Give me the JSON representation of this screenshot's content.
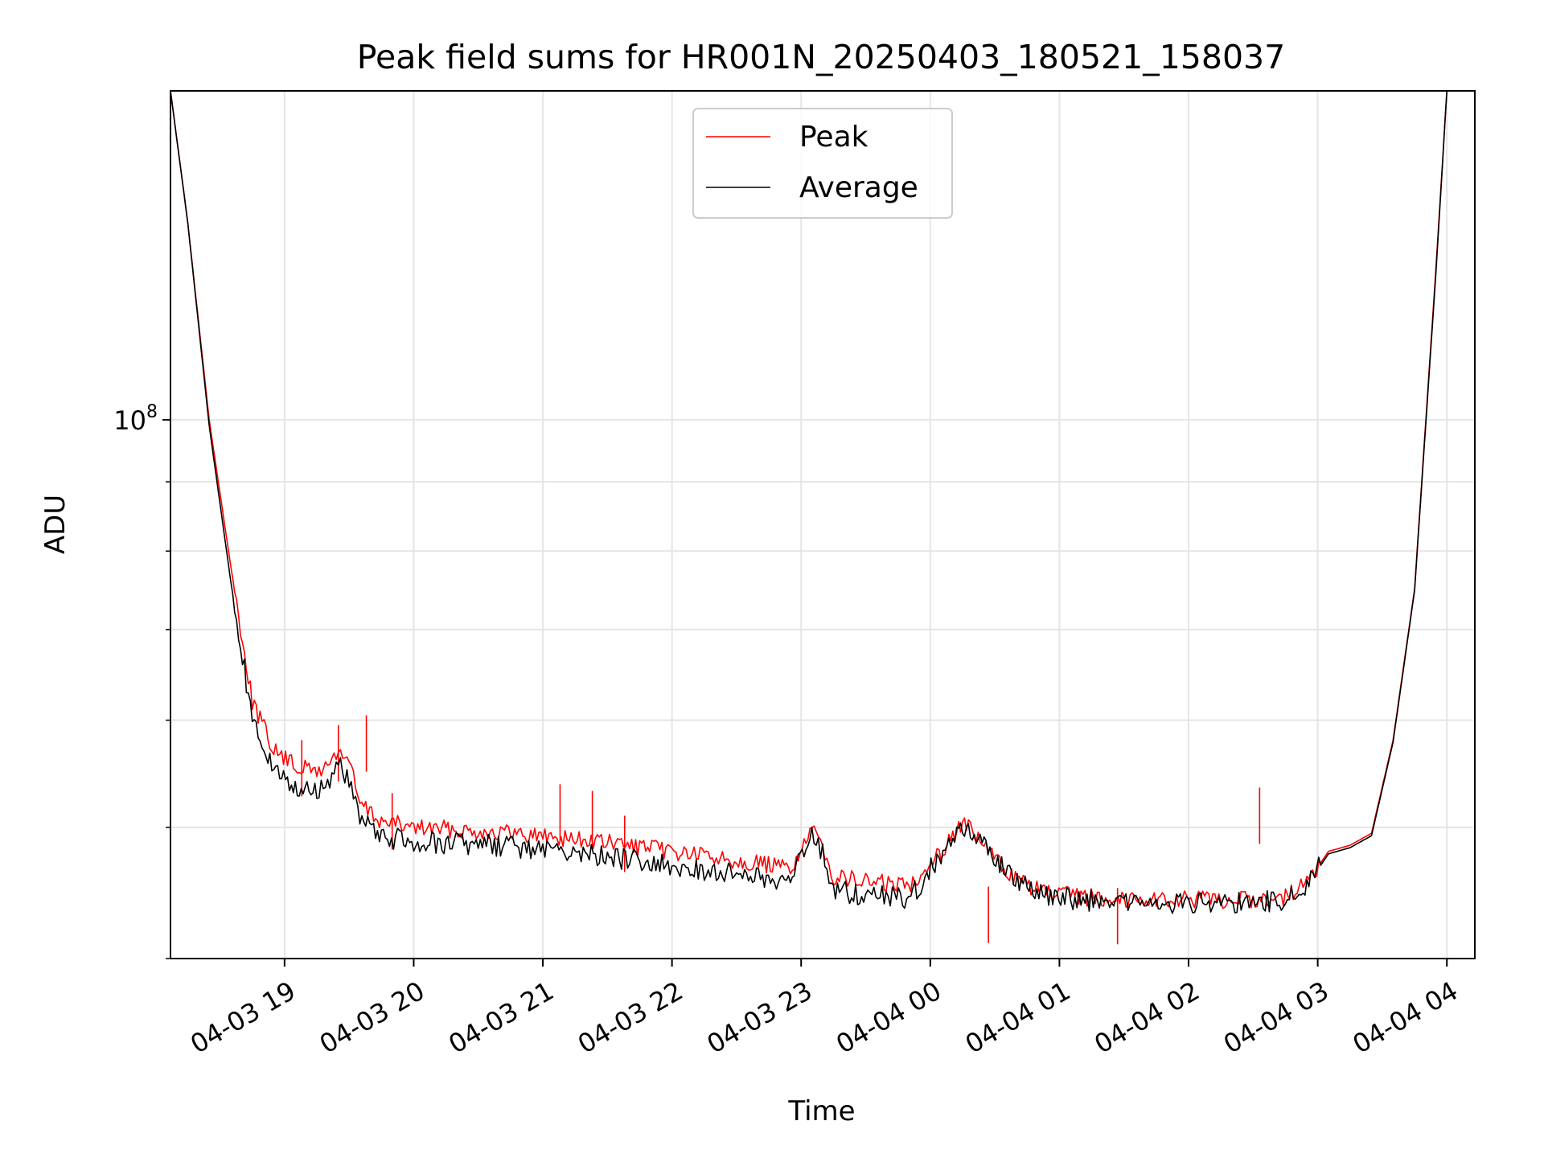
{
  "chart_data": {
    "type": "line",
    "title": "Peak field sums for HR001N_20250403_180521_158037",
    "xlabel": "Time",
    "ylabel": "ADU",
    "x_tick_labels": [
      "04-03 19",
      "04-03 20",
      "04-03 21",
      "04-03 22",
      "04-03 23",
      "04-04 00",
      "04-04 01",
      "04-04 02",
      "04-04 03",
      "04-04 04"
    ],
    "x_ticks": [
      "2025-04-03 19:00",
      "2025-04-03 20:00",
      "2025-04-03 21:00",
      "2025-04-03 22:00",
      "2025-04-03 23:00",
      "2025-04-04 00:00",
      "2025-04-04 01:00",
      "2025-04-04 02:00",
      "2025-04-04 03:00",
      "2025-04-04 04:00"
    ],
    "xlim": [
      "2025-04-03 18:07",
      "2025-04-04 04:13"
    ],
    "y_scale": "log",
    "y_tick_label": {
      "base": "10",
      "exponent": "8",
      "value": 100000000
    },
    "ylim": [
      40000000,
      175000000
    ],
    "grid": true,
    "legend_position": "upper center",
    "series": [
      {
        "name": "Peak",
        "color": "#ff0000",
        "points": [
          [
            "2025-04-03 18:07",
            175000000
          ],
          [
            "2025-04-03 18:15",
            140000000
          ],
          [
            "2025-04-03 18:25",
            100000000
          ],
          [
            "2025-04-03 18:35",
            78000000
          ],
          [
            "2025-04-03 18:45",
            62000000
          ],
          [
            "2025-04-03 18:55",
            57000000
          ],
          [
            "2025-04-03 19:05",
            55500000
          ],
          [
            "2025-04-03 19:15",
            55000000
          ],
          [
            "2025-04-03 19:20",
            55500000
          ],
          [
            "2025-04-03 19:25",
            57000000
          ],
          [
            "2025-04-03 19:30",
            56000000
          ],
          [
            "2025-04-03 19:35",
            52000000
          ],
          [
            "2025-04-03 19:45",
            50500000
          ],
          [
            "2025-04-03 20:00",
            50000000
          ],
          [
            "2025-04-03 20:30",
            49700000
          ],
          [
            "2025-04-03 21:00",
            49300000
          ],
          [
            "2025-04-03 21:30",
            48700000
          ],
          [
            "2025-04-03 22:00",
            48000000
          ],
          [
            "2025-04-03 22:30",
            47300000
          ],
          [
            "2025-04-03 22:55",
            46600000
          ],
          [
            "2025-04-03 23:05",
            49600000
          ],
          [
            "2025-04-03 23:10",
            48500000
          ],
          [
            "2025-04-03 23:15",
            46000000
          ],
          [
            "2025-04-03 23:30",
            45600000
          ],
          [
            "2025-04-03 23:50",
            45300000
          ],
          [
            "2025-04-04 00:05",
            48000000
          ],
          [
            "2025-04-04 00:15",
            50500000
          ],
          [
            "2025-04-04 00:25",
            48500000
          ],
          [
            "2025-04-04 00:35",
            46500000
          ],
          [
            "2025-04-04 00:45",
            45300000
          ],
          [
            "2025-04-04 00:55",
            44700000
          ],
          [
            "2025-04-04 01:10",
            44400000
          ],
          [
            "2025-04-04 01:30",
            44300000
          ],
          [
            "2025-04-04 02:00",
            44200000
          ],
          [
            "2025-04-04 02:30",
            44200000
          ],
          [
            "2025-04-04 02:45",
            44400000
          ],
          [
            "2025-04-04 02:55",
            45500000
          ],
          [
            "2025-04-04 03:05",
            48000000
          ],
          [
            "2025-04-04 03:15",
            48500000
          ],
          [
            "2025-04-04 03:25",
            49500000
          ],
          [
            "2025-04-04 03:35",
            58000000
          ],
          [
            "2025-04-04 03:45",
            75000000
          ],
          [
            "2025-04-04 03:55",
            130000000
          ],
          [
            "2025-04-04 04:00",
            175000000
          ]
        ],
        "spikes": [
          [
            "2025-04-03 19:08",
            58000000
          ],
          [
            "2025-04-03 19:25",
            59500000
          ],
          [
            "2025-04-03 19:38",
            60500000
          ],
          [
            "2025-04-03 19:50",
            53000000
          ],
          [
            "2025-04-03 21:08",
            53800000
          ],
          [
            "2025-04-03 21:23",
            53200000
          ],
          [
            "2025-04-03 21:38",
            51000000
          ],
          [
            "2025-04-04 00:27",
            45200000
          ],
          [
            "2025-04-04 01:27",
            45100000
          ],
          [
            "2025-04-04 02:33",
            53500000
          ]
        ]
      },
      {
        "name": "Average",
        "color": "#000000",
        "points": [
          [
            "2025-04-03 18:07",
            175000000
          ],
          [
            "2025-04-03 18:15",
            140000000
          ],
          [
            "2025-04-03 18:25",
            99000000
          ],
          [
            "2025-04-03 18:35",
            76000000
          ],
          [
            "2025-04-03 18:45",
            60000000
          ],
          [
            "2025-04-03 18:55",
            55000000
          ],
          [
            "2025-04-03 19:05",
            53500000
          ],
          [
            "2025-04-03 19:15",
            53300000
          ],
          [
            "2025-04-03 19:20",
            54000000
          ],
          [
            "2025-04-03 19:25",
            55500000
          ],
          [
            "2025-04-03 19:30",
            54500000
          ],
          [
            "2025-04-03 19:35",
            50500000
          ],
          [
            "2025-04-03 19:45",
            49200000
          ],
          [
            "2025-04-03 20:00",
            48800000
          ],
          [
            "2025-04-03 20:30",
            48600000
          ],
          [
            "2025-04-03 21:00",
            48100000
          ],
          [
            "2025-04-03 21:30",
            47600000
          ],
          [
            "2025-04-03 22:00",
            46900000
          ],
          [
            "2025-04-03 22:30",
            46200000
          ],
          [
            "2025-04-03 22:55",
            45600000
          ],
          [
            "2025-04-03 23:05",
            49400000
          ],
          [
            "2025-04-03 23:10",
            48000000
          ],
          [
            "2025-04-03 23:15",
            44900000
          ],
          [
            "2025-04-03 23:30",
            44600000
          ],
          [
            "2025-04-03 23:50",
            44200000
          ],
          [
            "2025-04-04 00:05",
            47800000
          ],
          [
            "2025-04-04 00:15",
            50300000
          ],
          [
            "2025-04-04 00:25",
            48300000
          ],
          [
            "2025-04-04 00:35",
            46300000
          ],
          [
            "2025-04-04 00:45",
            45100000
          ],
          [
            "2025-04-04 00:55",
            44400000
          ],
          [
            "2025-04-04 01:10",
            44200000
          ],
          [
            "2025-04-04 01:30",
            44100000
          ],
          [
            "2025-04-04 02:00",
            44000000
          ],
          [
            "2025-04-04 02:30",
            44000000
          ],
          [
            "2025-04-04 02:45",
            44200000
          ],
          [
            "2025-04-04 02:55",
            45300000
          ],
          [
            "2025-04-04 03:05",
            47800000
          ],
          [
            "2025-04-04 03:15",
            48300000
          ],
          [
            "2025-04-04 03:25",
            49300000
          ],
          [
            "2025-04-04 03:35",
            57800000
          ],
          [
            "2025-04-04 03:45",
            74800000
          ],
          [
            "2025-04-04 03:55",
            129000000
          ],
          [
            "2025-04-04 04:00",
            175000000
          ]
        ]
      }
    ]
  }
}
